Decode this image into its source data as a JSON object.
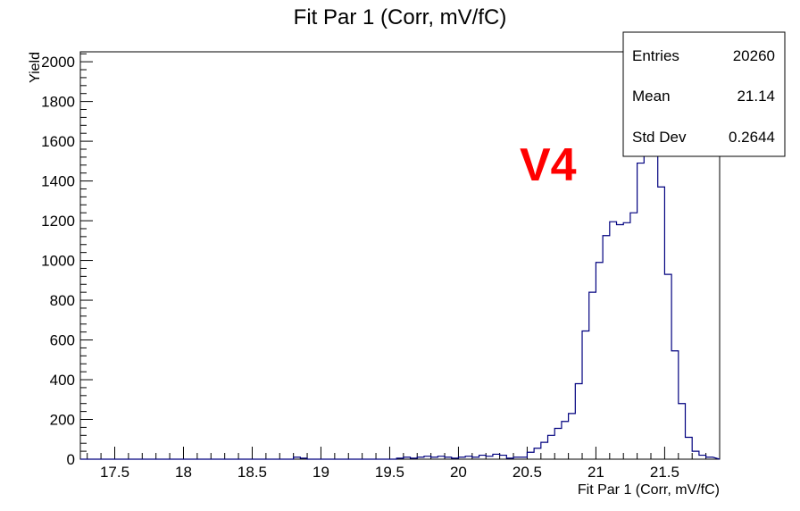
{
  "chart_data": {
    "type": "histogram",
    "title": "Fit Par 1 (Corr, mV/fC)",
    "xlabel": "Fit Par 1 (Corr, mV/fC)",
    "ylabel": "Yield",
    "xlim": [
      17.25,
      21.9
    ],
    "ylim": [
      0,
      2050
    ],
    "bin_width": 0.05,
    "x_ticks": [
      "17.5",
      "18",
      "18.5",
      "19",
      "19.5",
      "20",
      "20.5",
      "21",
      "21.5"
    ],
    "y_ticks": [
      "0",
      "200",
      "400",
      "600",
      "800",
      "1000",
      "1200",
      "1400",
      "1600",
      "1800",
      "2000"
    ],
    "bins": [
      {
        "x": 18.8,
        "y": 10
      },
      {
        "x": 18.85,
        "y": 5
      },
      {
        "x": 19.55,
        "y": 5
      },
      {
        "x": 19.6,
        "y": 10
      },
      {
        "x": 19.65,
        "y": 5
      },
      {
        "x": 19.7,
        "y": 10
      },
      {
        "x": 19.75,
        "y": 15
      },
      {
        "x": 19.8,
        "y": 10
      },
      {
        "x": 19.85,
        "y": 15
      },
      {
        "x": 19.9,
        "y": 10
      },
      {
        "x": 19.95,
        "y": 5
      },
      {
        "x": 20.0,
        "y": 10
      },
      {
        "x": 20.05,
        "y": 15
      },
      {
        "x": 20.1,
        "y": 10
      },
      {
        "x": 20.15,
        "y": 20
      },
      {
        "x": 20.2,
        "y": 15
      },
      {
        "x": 20.25,
        "y": 25
      },
      {
        "x": 20.3,
        "y": 20
      },
      {
        "x": 20.35,
        "y": 5
      },
      {
        "x": 20.4,
        "y": 10
      },
      {
        "x": 20.45,
        "y": 10
      },
      {
        "x": 20.5,
        "y": 35
      },
      {
        "x": 20.55,
        "y": 55
      },
      {
        "x": 20.6,
        "y": 85
      },
      {
        "x": 20.65,
        "y": 120
      },
      {
        "x": 20.7,
        "y": 155
      },
      {
        "x": 20.75,
        "y": 190
      },
      {
        "x": 20.8,
        "y": 230
      },
      {
        "x": 20.85,
        "y": 380
      },
      {
        "x": 20.9,
        "y": 645
      },
      {
        "x": 20.95,
        "y": 840
      },
      {
        "x": 21.0,
        "y": 990
      },
      {
        "x": 21.05,
        "y": 1125
      },
      {
        "x": 21.1,
        "y": 1195
      },
      {
        "x": 21.15,
        "y": 1180
      },
      {
        "x": 21.2,
        "y": 1190
      },
      {
        "x": 21.25,
        "y": 1240
      },
      {
        "x": 21.3,
        "y": 1490
      },
      {
        "x": 21.35,
        "y": 1640
      },
      {
        "x": 21.4,
        "y": 1590
      },
      {
        "x": 21.45,
        "y": 1370
      },
      {
        "x": 21.5,
        "y": 930
      },
      {
        "x": 21.55,
        "y": 545
      },
      {
        "x": 21.6,
        "y": 280
      },
      {
        "x": 21.65,
        "y": 110
      },
      {
        "x": 21.7,
        "y": 40
      },
      {
        "x": 21.75,
        "y": 20
      },
      {
        "x": 21.8,
        "y": 10
      },
      {
        "x": 21.85,
        "y": 5
      }
    ],
    "line_color": "#00007f"
  },
  "stats": {
    "entries_label": "Entries",
    "entries_value": "20260",
    "mean_label": "Mean",
    "mean_value": "21.14",
    "std_label": "Std Dev",
    "std_value": "0.2644"
  },
  "overlay_label": "V4",
  "overlay_color": "#ff0000"
}
